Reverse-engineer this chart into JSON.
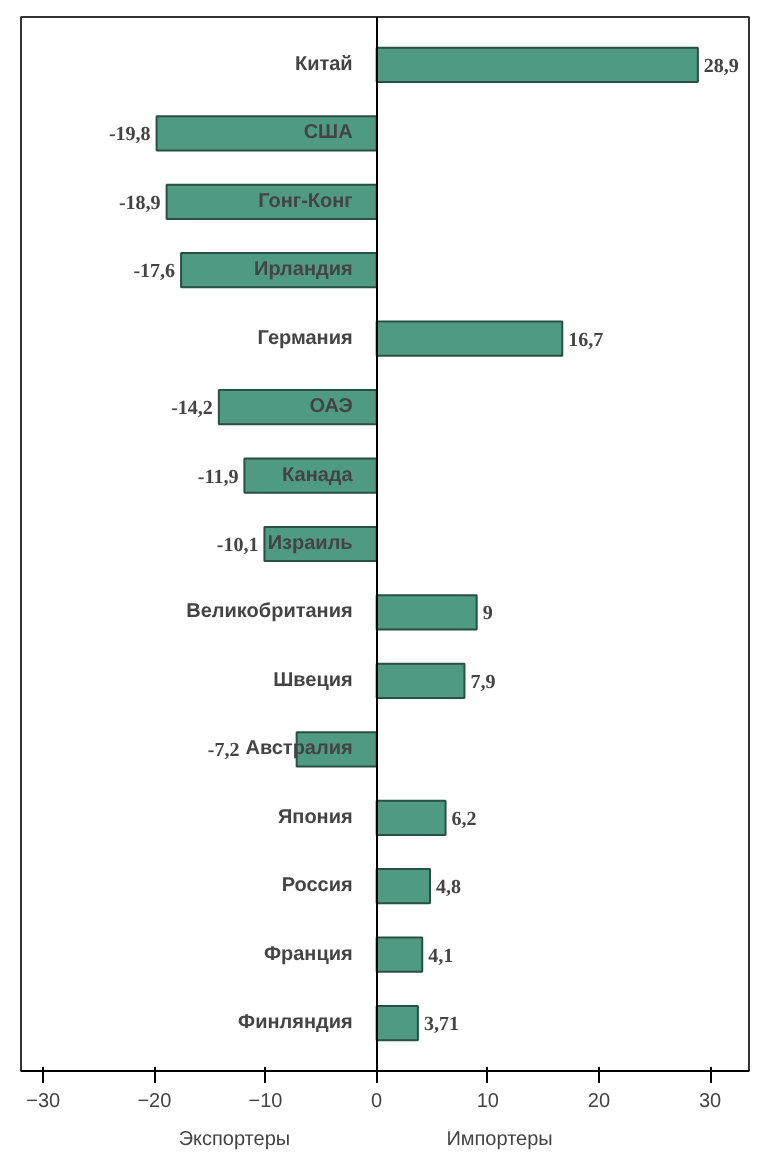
{
  "chart_data": {
    "type": "bar",
    "orientation": "horizontal",
    "categories": [
      "Китай",
      "США",
      "Гонг-Конг",
      "Ирландия",
      "Германия",
      "ОАЭ",
      "Канада",
      "Израиль",
      "Великобритания",
      "Швеция",
      "Австралия",
      "Япония",
      "Россия",
      "Франция",
      "Финляндия"
    ],
    "values": [
      28.9,
      -19.8,
      -18.9,
      -17.6,
      16.7,
      -14.2,
      -11.9,
      -10.1,
      9,
      7.9,
      -7.2,
      6.2,
      4.8,
      4.1,
      3.71
    ],
    "value_labels": [
      "28,9",
      "-19,8",
      "-18,9",
      "-17,6",
      "16,7",
      "-14,2",
      "-11,9",
      "-10,1",
      "9",
      "7,9",
      "-7,2",
      "6,2",
      "4,8",
      "4,1",
      "3,71"
    ],
    "color": "#4f9a82",
    "xlim": [
      -32,
      33.5
    ],
    "xticks": [
      -30,
      -20,
      -10,
      0,
      10,
      20,
      30
    ],
    "annotations": [
      "Экспортеры",
      "Импортеры"
    ],
    "grid": false
  }
}
